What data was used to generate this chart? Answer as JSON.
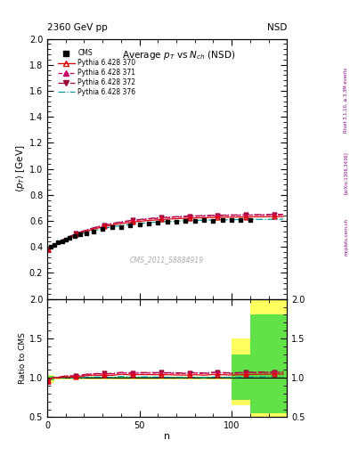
{
  "title_main": "Average $p_T$ vs $N_{ch}$ (NSD)",
  "header_left": "2360 GeV pp",
  "header_right": "NSD",
  "watermark": "CMS_2011_S8884919",
  "rivet_label": "Rivet 3.1.10, ≥ 3.3M events",
  "arxiv_label": "[arXiv:1306.3436]",
  "mcplots_label": "mcplots.cern.ch",
  "ylabel_main": "$\\langle p_T \\rangle$ [GeV]",
  "ylabel_ratio": "Ratio to CMS",
  "xlabel": "n",
  "ylim_main": [
    0.0,
    2.0
  ],
  "ylim_ratio": [
    0.5,
    2.0
  ],
  "xlim": [
    0,
    130
  ],
  "yticks_main": [
    0.2,
    0.4,
    0.6,
    0.8,
    1.0,
    1.2,
    1.4,
    1.6,
    1.8,
    2.0
  ],
  "yticks_ratio": [
    0.5,
    1.0,
    1.5,
    2.0
  ],
  "xticks": [
    0,
    50,
    100
  ],
  "cms_color": "#000000",
  "py370_color": "#dd0000",
  "py371_color": "#cc0066",
  "py372_color": "#990033",
  "py376_color": "#009999",
  "band_yellow": "#ffff44",
  "band_green": "#44dd44",
  "legend_entries": [
    "CMS",
    "Pythia 6.428 370",
    "Pythia 6.428 371",
    "Pythia 6.428 372",
    "Pythia 6.428 376"
  ]
}
